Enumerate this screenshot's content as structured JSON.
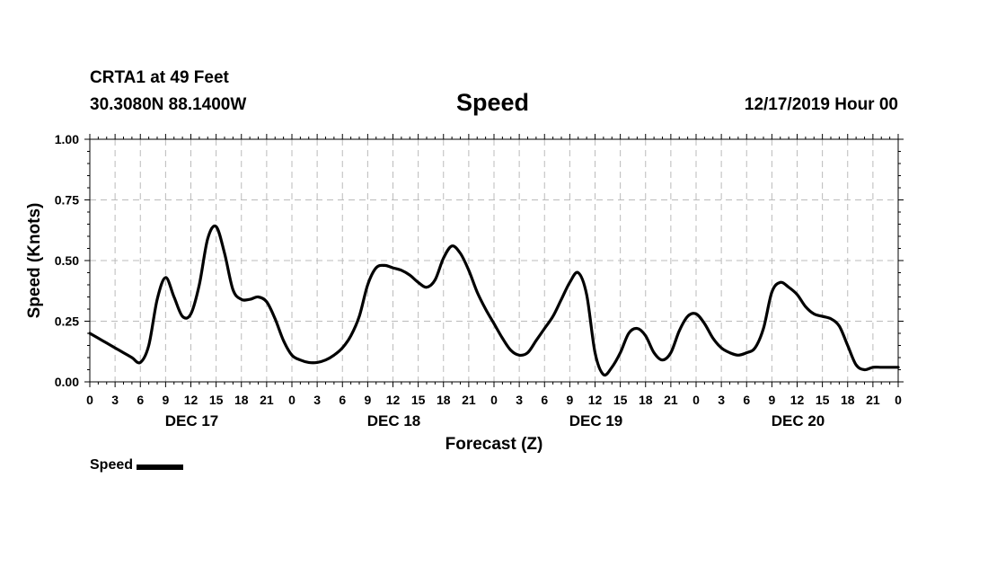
{
  "header": {
    "station": "CRTA1 at 49 Feet",
    "location": "30.3080N 88.1400W",
    "title": "Speed",
    "issued": "12/17/2019 Hour 00"
  },
  "legend": {
    "label": "Speed"
  },
  "chart_data": {
    "type": "line",
    "title": "Speed",
    "xlabel": "Forecast (Z)",
    "ylabel": "Speed (Knots)",
    "xlim": [
      0,
      96
    ],
    "ylim": [
      0,
      1.0
    ],
    "grid": true,
    "legend_position": "bottom-left",
    "yticks": [
      0.0,
      0.25,
      0.5,
      0.75,
      1.0
    ],
    "ytick_labels": [
      "0.00",
      "0.25",
      "0.50",
      "0.75",
      "1.00"
    ],
    "xticks": [
      0,
      3,
      6,
      9,
      12,
      15,
      18,
      21,
      24,
      27,
      30,
      33,
      36,
      39,
      42,
      45,
      48,
      51,
      54,
      57,
      60,
      63,
      66,
      69,
      72,
      75,
      78,
      81,
      84,
      87,
      90,
      93,
      96
    ],
    "xtick_labels": [
      "0",
      "3",
      "6",
      "9",
      "12",
      "15",
      "18",
      "21",
      "0",
      "3",
      "6",
      "9",
      "12",
      "15",
      "18",
      "21",
      "0",
      "3",
      "6",
      "9",
      "12",
      "15",
      "18",
      "21",
      "0",
      "3",
      "6",
      "9",
      "12",
      "15",
      "18",
      "21",
      "0"
    ],
    "day_labels": [
      {
        "x": 12,
        "label": "DEC 17"
      },
      {
        "x": 36,
        "label": "DEC 18"
      },
      {
        "x": 60,
        "label": "DEC 19"
      },
      {
        "x": 84,
        "label": "DEC 20"
      }
    ],
    "series": [
      {
        "name": "Speed",
        "color": "#000000",
        "x": [
          0,
          1,
          2,
          3,
          4,
          5,
          6,
          7,
          8,
          9,
          10,
          11,
          12,
          13,
          14,
          15,
          16,
          17,
          18,
          19,
          20,
          21,
          22,
          23,
          24,
          25,
          26,
          27,
          28,
          29,
          30,
          31,
          32,
          33,
          34,
          35,
          36,
          37,
          38,
          39,
          40,
          41,
          42,
          43,
          44,
          45,
          46,
          47,
          48,
          49,
          50,
          51,
          52,
          53,
          54,
          55,
          56,
          57,
          58,
          59,
          60,
          61,
          62,
          63,
          64,
          65,
          66,
          67,
          68,
          69,
          70,
          71,
          72,
          73,
          74,
          75,
          76,
          77,
          78,
          79,
          80,
          81,
          82,
          83,
          84,
          85,
          86,
          87,
          88,
          89,
          90,
          91,
          92,
          93,
          94,
          95,
          96
        ],
        "values": [
          0.2,
          0.18,
          0.16,
          0.14,
          0.12,
          0.1,
          0.08,
          0.15,
          0.34,
          0.43,
          0.35,
          0.27,
          0.28,
          0.4,
          0.59,
          0.64,
          0.53,
          0.38,
          0.34,
          0.34,
          0.35,
          0.33,
          0.26,
          0.17,
          0.11,
          0.09,
          0.08,
          0.08,
          0.09,
          0.11,
          0.14,
          0.19,
          0.27,
          0.4,
          0.47,
          0.48,
          0.47,
          0.46,
          0.44,
          0.41,
          0.39,
          0.42,
          0.51,
          0.56,
          0.53,
          0.46,
          0.37,
          0.3,
          0.24,
          0.18,
          0.13,
          0.11,
          0.12,
          0.17,
          0.22,
          0.27,
          0.34,
          0.41,
          0.45,
          0.36,
          0.12,
          0.03,
          0.06,
          0.12,
          0.2,
          0.22,
          0.19,
          0.12,
          0.09,
          0.12,
          0.21,
          0.27,
          0.28,
          0.24,
          0.18,
          0.14,
          0.12,
          0.11,
          0.12,
          0.14,
          0.22,
          0.37,
          0.41,
          0.39,
          0.36,
          0.31,
          0.28,
          0.27,
          0.26,
          0.23,
          0.15,
          0.07,
          0.05,
          0.06,
          0.06,
          0.06,
          0.06
        ]
      }
    ]
  }
}
